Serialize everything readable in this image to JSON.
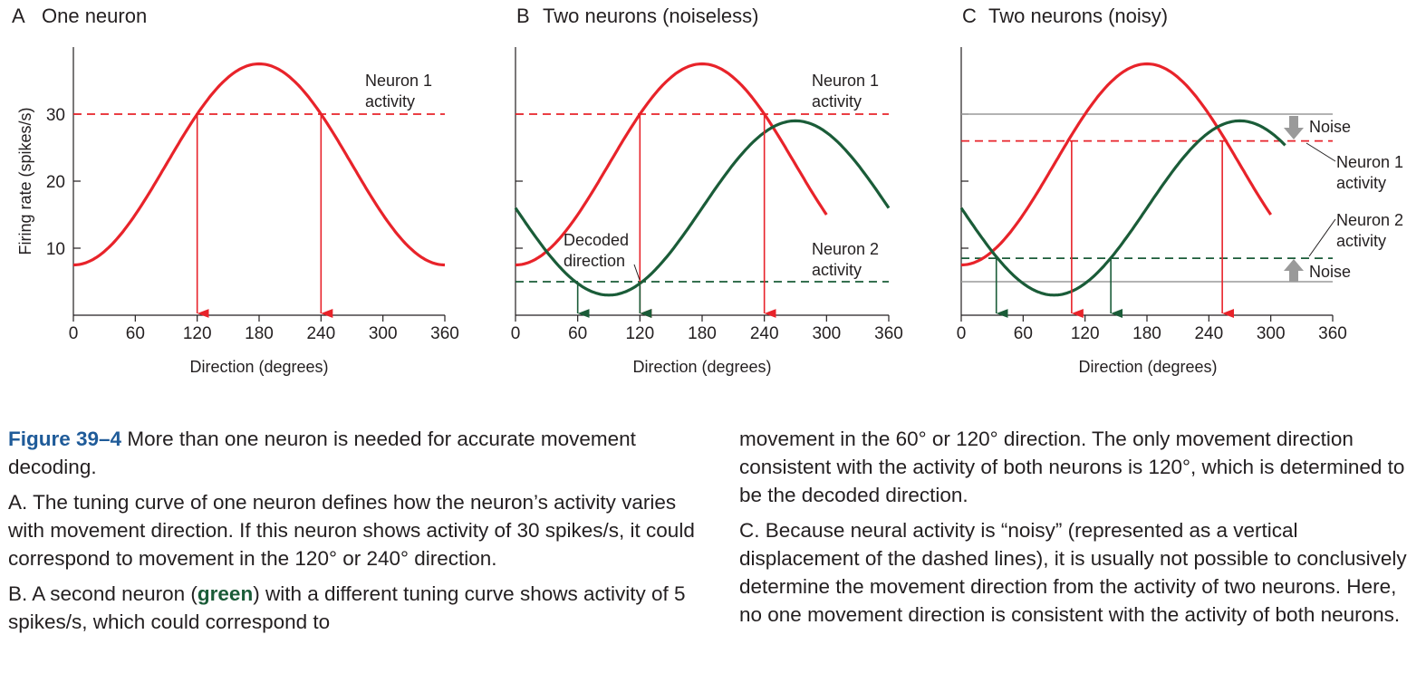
{
  "chart_data": [
    {
      "type": "line",
      "panel_letter": "A",
      "title": "One neuron",
      "xlabel": "Direction (degrees)",
      "ylabel": "Firing rate (spikes/s)",
      "xlim": [
        0,
        360
      ],
      "ylim": [
        0,
        40
      ],
      "x_ticks": [
        0,
        60,
        120,
        180,
        240,
        300,
        360
      ],
      "y_ticks": [
        10,
        20,
        30
      ],
      "show_y_tick_labels": true,
      "series": [
        {
          "kind": "tuning",
          "color": "#e8232a",
          "preferred": 180,
          "baseline": 7.5,
          "amplitude": 30,
          "x_range": [
            0,
            360
          ]
        }
      ],
      "activity_lines": [
        {
          "color": "#e8232a",
          "y": 30
        }
      ],
      "decoded_arrows": [
        {
          "color": "#e8232a",
          "x": 120,
          "from_y": 30
        },
        {
          "color": "#e8232a",
          "x": 240,
          "from_y": 30
        }
      ],
      "annotations": [
        {
          "text": [
            "Neuron 1",
            "activity"
          ],
          "color": "#231f20"
        }
      ]
    },
    {
      "type": "line",
      "panel_letter": "B",
      "title": "Two neurons (noiseless)",
      "xlabel": "Direction (degrees)",
      "xlim": [
        0,
        360
      ],
      "ylim": [
        0,
        40
      ],
      "x_ticks": [
        0,
        60,
        120,
        180,
        240,
        300,
        360
      ],
      "y_ticks": [
        10,
        20,
        30
      ],
      "show_y_tick_labels": false,
      "series": [
        {
          "kind": "tuning",
          "color": "#e8232a",
          "preferred": 180,
          "baseline": 7.5,
          "amplitude": 30,
          "x_range": [
            0,
            300
          ]
        },
        {
          "kind": "tuning",
          "color": "#1a5c38",
          "preferred": 270,
          "baseline": 3.0,
          "amplitude": 26,
          "x_range": [
            0,
            360
          ]
        }
      ],
      "activity_lines": [
        {
          "color": "#e8232a",
          "y": 30
        },
        {
          "color": "#1a5c38",
          "y": 5
        }
      ],
      "decoded_arrows": [
        {
          "color": "#e8232a",
          "x": 120,
          "from_y": 30
        },
        {
          "color": "#e8232a",
          "x": 240,
          "from_y": 30
        },
        {
          "color": "#1a5c38",
          "x": 60,
          "from_y": 5
        },
        {
          "color": "#1a5c38",
          "x": 120,
          "from_y": 5
        }
      ],
      "annotations": [
        {
          "text": [
            "Neuron 1",
            "activity"
          ]
        },
        {
          "text": [
            "Neuron 2",
            "activity"
          ]
        },
        {
          "text": [
            "Decoded",
            "direction"
          ]
        }
      ]
    },
    {
      "type": "line",
      "panel_letter": "C",
      "title": "Two neurons (noisy)",
      "xlabel": "Direction (degrees)",
      "xlim": [
        0,
        360
      ],
      "ylim": [
        0,
        40
      ],
      "x_ticks": [
        0,
        60,
        120,
        180,
        240,
        300,
        360
      ],
      "y_ticks": [
        10,
        20,
        30
      ],
      "show_y_tick_labels": false,
      "series": [
        {
          "kind": "tuning",
          "color": "#e8232a",
          "preferred": 180,
          "baseline": 7.5,
          "amplitude": 30,
          "x_range": [
            0,
            300
          ]
        },
        {
          "kind": "tuning",
          "color": "#1a5c38",
          "preferred": 270,
          "baseline": 3.0,
          "amplitude": 26,
          "x_range": [
            0,
            315
          ]
        }
      ],
      "true_lines": [
        {
          "color": "#9a9a9a",
          "y": 30
        },
        {
          "color": "#9a9a9a",
          "y": 5
        }
      ],
      "activity_lines": [
        {
          "color": "#e8232a",
          "y": 26
        },
        {
          "color": "#1a5c38",
          "y": 8.5
        }
      ],
      "decoded_arrows": [
        {
          "color": "#e8232a",
          "x": 107,
          "from_y": 26
        },
        {
          "color": "#e8232a",
          "x": 253,
          "from_y": 26
        },
        {
          "color": "#1a5c38",
          "x": 34,
          "from_y": 8.5
        },
        {
          "color": "#1a5c38",
          "x": 145,
          "from_y": 8.5
        }
      ],
      "annotations": [
        {
          "text": [
            "Noise"
          ]
        },
        {
          "text": [
            "Neuron 1",
            "activity"
          ]
        },
        {
          "text": [
            "Neuron 2",
            "activity"
          ]
        },
        {
          "text": [
            "Noise"
          ]
        }
      ]
    }
  ],
  "caption": {
    "figure_number": "Figure 39–4",
    "figure_title": "More than one neuron is needed for accurate movement decoding.",
    "part_a_letter": "A.",
    "part_a_text": "The tuning curve of one neuron defines how the neuron’s activity varies with movement direction. If this neuron shows activity of 30 spikes/s, it could correspond to movement in the 120° or 240° direction.",
    "part_b_letter": "B.",
    "part_b_text_1": "A second neuron (",
    "part_b_green": "green",
    "part_b_text_2": ") with a different tuning curve shows activity of 5 spikes/s, which could correspond to",
    "part_b_cont": "movement in the 60° or 120° direction. The only movement direction consistent with the activity of both neurons is 120°, which is determined to be the decoded direction.",
    "part_c_letter": "C.",
    "part_c_text": "Because neural activity is “noisy” (represented as a vertical displacement of the dashed lines), it is usually not possible to conclusively determine the movement direction from the activity of two neurons. Here, no one movement direction is consistent with the activity of both neurons."
  },
  "colors": {
    "red": "#e8232a",
    "green": "#1a5c38",
    "gray": "#9a9a9a",
    "caption_blue": "#1f5b99"
  }
}
